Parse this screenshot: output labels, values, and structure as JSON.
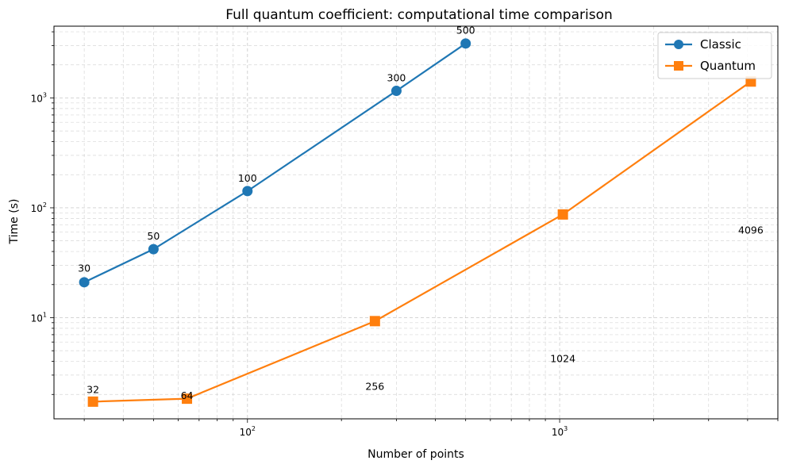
{
  "chart_data": {
    "type": "line",
    "title": "Full quantum coefficient: computational time comparison",
    "xlabel": "Number of points",
    "ylabel": "Time (s)",
    "xscale": "log",
    "yscale": "log",
    "xlim": [
      24,
      5000
    ],
    "ylim": [
      1.2,
      4500
    ],
    "grid": "both",
    "legend": "top-right",
    "x_ticks": [
      {
        "value": 100,
        "base": "10",
        "exp": "2"
      },
      {
        "value": 1000,
        "base": "10",
        "exp": "3"
      }
    ],
    "y_ticks": [
      {
        "value": 10,
        "base": "10",
        "exp": "1"
      },
      {
        "value": 100,
        "base": "10",
        "exp": "2"
      },
      {
        "value": 1000,
        "base": "10",
        "exp": "3"
      }
    ],
    "series": [
      {
        "name": "Classic",
        "color": "#1f77b4",
        "marker": "circle",
        "points": [
          {
            "x": 30,
            "y": 21,
            "label": "30"
          },
          {
            "x": 50,
            "y": 42,
            "label": "50"
          },
          {
            "x": 100,
            "y": 142,
            "label": "100"
          },
          {
            "x": 300,
            "y": 1160,
            "label": "300"
          },
          {
            "x": 500,
            "y": 3130,
            "label": "500"
          }
        ],
        "label_positions": [
          {
            "x": 30,
            "y": 28
          },
          {
            "x": 50,
            "y": 55
          },
          {
            "x": 100,
            "y": 185
          },
          {
            "x": 300,
            "y": 1520
          },
          {
            "x": 500,
            "y": 4100
          }
        ]
      },
      {
        "name": "Quantum",
        "color": "#ff7f0e",
        "marker": "square",
        "points": [
          {
            "x": 32,
            "y": 1.72,
            "label": "32"
          },
          {
            "x": 64,
            "y": 1.83,
            "label": "64"
          },
          {
            "x": 256,
            "y": 9.3,
            "label": "256"
          },
          {
            "x": 1024,
            "y": 87,
            "label": "1024"
          },
          {
            "x": 4096,
            "y": 1410,
            "label": "4096"
          }
        ],
        "label_positions": [
          {
            "x": 32,
            "y": 2.2
          },
          {
            "x": 64,
            "y": 1.95
          },
          {
            "x": 256,
            "y": 2.35
          },
          {
            "x": 1024,
            "y": 4.2
          },
          {
            "x": 4096,
            "y": 62
          }
        ]
      }
    ]
  }
}
